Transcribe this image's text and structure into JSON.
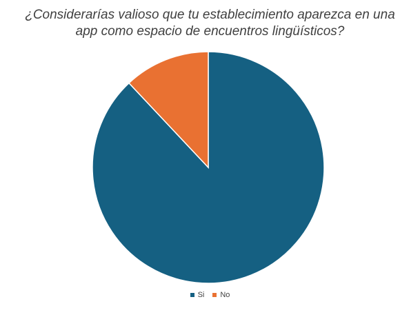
{
  "chart_data": {
    "type": "pie",
    "title_lines": [
      "¿Considerarías valioso que tu establecimiento aparezca en una",
      "app como espacio de encuentros lingüísticos?"
    ],
    "categories": [
      "Si",
      "No"
    ],
    "values": [
      88,
      12
    ],
    "colors": [
      "#156082",
      "#E97132"
    ],
    "legend_position": "bottom"
  }
}
